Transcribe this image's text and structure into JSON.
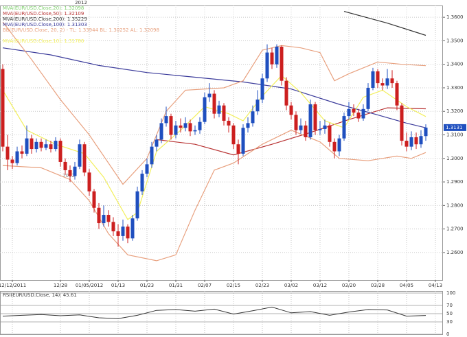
{
  "chart_data": {
    "type": "candlestick",
    "top_label": "2012",
    "year_mark": "2012",
    "xlim": [
      -0.57,
      91.57
    ],
    "ylim": [
      1.2483,
      1.365
    ],
    "xticks": [
      {
        "value": 2,
        "label": "12/12/2011"
      },
      {
        "value": 12,
        "label": "12/28"
      },
      {
        "value": 18,
        "label": "01/05/2012"
      },
      {
        "value": 24,
        "label": "01/13"
      },
      {
        "value": 30,
        "label": "01/23"
      },
      {
        "value": 36,
        "label": "01/31"
      },
      {
        "value": 42,
        "label": "02/07"
      },
      {
        "value": 48,
        "label": "02/15"
      },
      {
        "value": 54,
        "label": "02/23"
      },
      {
        "value": 60,
        "label": "03/02"
      },
      {
        "value": 66,
        "label": "03/12"
      },
      {
        "value": 72,
        "label": "03/20"
      },
      {
        "value": 78,
        "label": "03/28"
      },
      {
        "value": 84,
        "label": "04/05"
      },
      {
        "value": 90,
        "label": "04/13"
      }
    ],
    "yticks": [
      {
        "value": 1.26,
        "label": "1.2600"
      },
      {
        "value": 1.27,
        "label": "1.2700"
      },
      {
        "value": 1.28,
        "label": "1.2800"
      },
      {
        "value": 1.29,
        "label": "1.2900"
      },
      {
        "value": 1.3,
        "label": "1.3000"
      },
      {
        "value": 1.31,
        "label": "1.3100"
      },
      {
        "value": 1.32,
        "label": "1.3200"
      },
      {
        "value": 1.33,
        "label": "1.3300"
      },
      {
        "value": 1.34,
        "label": "1.3400"
      },
      {
        "value": 1.35,
        "label": "1.3500"
      },
      {
        "value": 1.36,
        "label": "1.3600"
      }
    ],
    "grid": true,
    "up_color": "#1f4fbf",
    "down_color": "#cc1f1f",
    "last_price": {
      "value": 1.3131,
      "label": "1.3131"
    },
    "candles": {
      "open": [
        1.338,
        1.305,
        1.2995,
        1.298,
        1.303,
        1.302,
        1.3085,
        1.304,
        1.307,
        1.3045,
        1.306,
        1.304,
        1.3075,
        1.2985,
        1.295,
        1.2925,
        1.2965,
        1.306,
        1.294,
        1.286,
        1.279,
        1.2725,
        1.276,
        1.273,
        1.269,
        1.267,
        1.271,
        1.266,
        1.2745,
        1.286,
        1.2935,
        1.2975,
        1.305,
        1.308,
        1.315,
        1.318,
        1.31,
        1.314,
        1.313,
        1.315,
        1.3115,
        1.312,
        1.3155,
        1.326,
        1.3275,
        1.319,
        1.3225,
        1.316,
        1.314,
        1.306,
        1.302,
        1.313,
        1.315,
        1.32,
        1.325,
        1.334,
        1.345,
        1.34,
        1.3475,
        1.333,
        1.3225,
        1.3185,
        1.312,
        1.314,
        1.309,
        1.323,
        1.312,
        1.3125,
        1.314,
        1.307,
        1.303,
        1.3085,
        1.318,
        1.321,
        1.3195,
        1.317,
        1.321,
        1.33,
        1.337,
        1.332,
        1.331,
        1.334,
        1.332,
        1.3225,
        1.3075,
        1.305,
        1.309,
        1.306,
        1.3095
      ],
      "high": [
        1.34,
        1.31,
        1.301,
        1.305,
        1.3055,
        1.314,
        1.31,
        1.3085,
        1.3085,
        1.308,
        1.3075,
        1.309,
        1.3085,
        1.3,
        1.297,
        1.2985,
        1.308,
        1.307,
        1.2955,
        1.287,
        1.281,
        1.28,
        1.278,
        1.275,
        1.272,
        1.274,
        1.272,
        1.276,
        1.288,
        1.295,
        1.3,
        1.307,
        1.31,
        1.317,
        1.322,
        1.319,
        1.316,
        1.317,
        1.3175,
        1.3165,
        1.314,
        1.3175,
        1.328,
        1.332,
        1.329,
        1.3245,
        1.3235,
        1.3175,
        1.315,
        1.308,
        1.3145,
        1.3175,
        1.3225,
        1.329,
        1.336,
        1.3485,
        1.347,
        1.3485,
        1.348,
        1.3345,
        1.324,
        1.32,
        1.317,
        1.316,
        1.325,
        1.324,
        1.316,
        1.3165,
        1.315,
        1.3085,
        1.31,
        1.3195,
        1.324,
        1.323,
        1.321,
        1.323,
        1.332,
        1.3385,
        1.338,
        1.334,
        1.338,
        1.3375,
        1.333,
        1.3235,
        1.311,
        1.3115,
        1.311,
        1.312,
        1.3145
      ],
      "low": [
        1.303,
        1.295,
        1.2955,
        1.297,
        1.3,
        1.301,
        1.302,
        1.3025,
        1.303,
        1.3035,
        1.3025,
        1.303,
        1.2965,
        1.293,
        1.29,
        1.291,
        1.2955,
        1.2925,
        1.284,
        1.277,
        1.27,
        1.271,
        1.271,
        1.267,
        1.2625,
        1.265,
        1.264,
        1.265,
        1.2735,
        1.2845,
        1.292,
        1.296,
        1.303,
        1.3065,
        1.3135,
        1.308,
        1.3085,
        1.311,
        1.3115,
        1.3095,
        1.31,
        1.3105,
        1.3145,
        1.324,
        1.317,
        1.3175,
        1.314,
        1.311,
        1.304,
        1.2975,
        1.301,
        1.311,
        1.3135,
        1.3185,
        1.3235,
        1.3325,
        1.338,
        1.3385,
        1.331,
        1.3205,
        1.3165,
        1.31,
        1.3105,
        1.3075,
        1.308,
        1.31,
        1.31,
        1.3105,
        1.305,
        1.3,
        1.301,
        1.3075,
        1.3165,
        1.318,
        1.3155,
        1.316,
        1.32,
        1.329,
        1.33,
        1.329,
        1.3295,
        1.33,
        1.3205,
        1.3055,
        1.303,
        1.3035,
        1.304,
        1.3045,
        1.3075
      ],
      "close": [
        1.305,
        1.2995,
        1.298,
        1.303,
        1.302,
        1.3085,
        1.304,
        1.307,
        1.3045,
        1.306,
        1.304,
        1.3075,
        1.2985,
        1.295,
        1.2925,
        1.2965,
        1.306,
        1.294,
        1.286,
        1.279,
        1.2725,
        1.276,
        1.273,
        1.269,
        1.267,
        1.271,
        1.266,
        1.2745,
        1.286,
        1.2935,
        1.2975,
        1.305,
        1.308,
        1.315,
        1.318,
        1.31,
        1.314,
        1.313,
        1.315,
        1.3115,
        1.312,
        1.3155,
        1.326,
        1.3275,
        1.319,
        1.3225,
        1.316,
        1.314,
        1.306,
        1.302,
        1.313,
        1.315,
        1.32,
        1.325,
        1.334,
        1.345,
        1.34,
        1.3475,
        1.333,
        1.3225,
        1.3185,
        1.312,
        1.314,
        1.309,
        1.323,
        1.312,
        1.3125,
        1.314,
        1.307,
        1.303,
        1.3085,
        1.318,
        1.321,
        1.3195,
        1.317,
        1.321,
        1.33,
        1.337,
        1.332,
        1.331,
        1.334,
        1.332,
        1.3225,
        1.3075,
        1.305,
        1.309,
        1.306,
        1.3095,
        1.3131
      ]
    },
    "series": [
      {
        "name": "MVA(EUR/USD.Close,20): 1.32098",
        "color": "#7ccf6a"
      },
      {
        "name": "MVA(EUR/USD.Close,50): 1.32109",
        "color": "#b83232",
        "x": [
          32,
          40,
          48,
          56,
          64,
          72,
          80,
          88
        ],
        "values": [
          1.308,
          1.306,
          1.3015,
          1.306,
          1.311,
          1.3165,
          1.3215,
          1.3211
        ]
      },
      {
        "name": "MVA(EUR/USD.Close,200): 1.35229",
        "color": "#333333",
        "x": [
          71,
          80,
          88
        ],
        "values": [
          1.3625,
          1.3575,
          1.3523
        ]
      },
      {
        "name": "MVA(EUR/USD.Close,100): 1.31303",
        "color": "#3a3a9a",
        "x": [
          0,
          10,
          20,
          30,
          40,
          50,
          60,
          70,
          78,
          84,
          88
        ],
        "values": [
          1.347,
          1.344,
          1.3395,
          1.3365,
          1.3345,
          1.3325,
          1.3295,
          1.323,
          1.3185,
          1.315,
          1.313
        ]
      },
      {
        "name": "BB(EUR/USD.Close, 20, 2) - TL: 1.33944  BL: 1.30252  AL: 1.32098",
        "color": "#e8a07e",
        "x": [
          0,
          6,
          12,
          18,
          25,
          30,
          34,
          38,
          46,
          50,
          54,
          58,
          62,
          66,
          69,
          72,
          78,
          83,
          88
        ],
        "values": [
          1.358,
          1.342,
          1.325,
          1.31,
          1.289,
          1.3,
          1.32,
          1.329,
          1.33,
          1.333,
          1.346,
          1.348,
          1.347,
          1.345,
          1.333,
          1.336,
          1.341,
          1.34,
          1.3394
        ]
      },
      {
        "color": "#e8a07e",
        "x": [
          0,
          8,
          14,
          18,
          22,
          26,
          32,
          36,
          40,
          44,
          48,
          54,
          60,
          66,
          70,
          76,
          82,
          85,
          88
        ],
        "values": [
          1.297,
          1.296,
          1.291,
          1.282,
          1.268,
          1.259,
          1.2565,
          1.259,
          1.278,
          1.295,
          1.298,
          1.306,
          1.312,
          1.307,
          1.3,
          1.299,
          1.301,
          1.3,
          1.3025
        ]
      },
      {
        "name": "MVA(EUR/USD.Close,10): 1.31780",
        "color": "#f2ef5a",
        "x": [
          0,
          5,
          11,
          17,
          21,
          26,
          28,
          32,
          37,
          42,
          47,
          50,
          54,
          58,
          62,
          67,
          71,
          75,
          79,
          84,
          88
        ],
        "values": [
          1.329,
          1.312,
          1.306,
          1.302,
          1.292,
          1.274,
          1.277,
          1.303,
          1.312,
          1.322,
          1.319,
          1.316,
          1.3265,
          1.3352,
          1.328,
          1.316,
          1.313,
          1.326,
          1.329,
          1.322,
          1.3178
        ]
      }
    ],
    "rsi": {
      "title": "RSI(EUR/USD.Close, 14): 45.61",
      "color": "#333333",
      "ylim": [
        0,
        100
      ],
      "yticks": [
        0,
        30,
        50,
        70,
        100
      ],
      "x": [
        0,
        4,
        8,
        12,
        16,
        20,
        24,
        28,
        32,
        36,
        40,
        44,
        48,
        52,
        56,
        60,
        64,
        68,
        72,
        76,
        80,
        84,
        88
      ],
      "values": [
        44,
        46,
        48,
        45,
        47,
        40,
        38,
        46,
        58,
        60,
        56,
        61,
        49,
        57,
        66,
        52,
        55,
        46,
        54,
        60,
        59,
        44,
        45.61
      ]
    }
  }
}
